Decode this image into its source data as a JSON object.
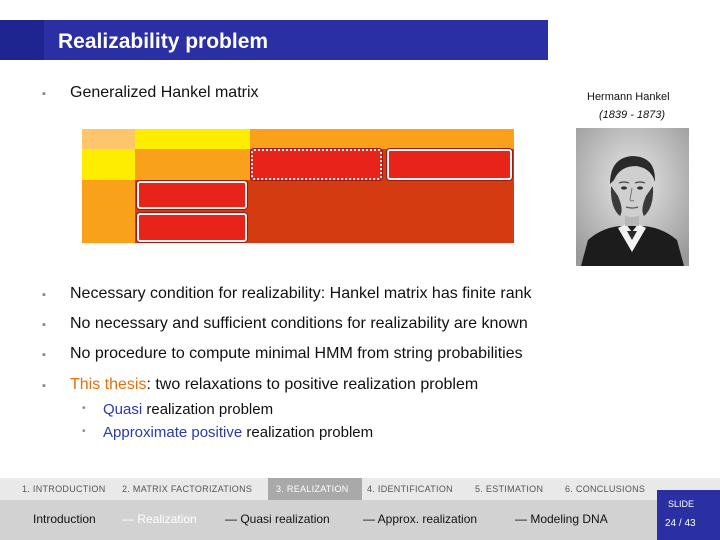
{
  "title": "Realizability problem",
  "bullets": {
    "b1": "Generalized Hankel matrix",
    "b2": "Necessary condition for realizability: Hankel matrix has finite rank",
    "b3": "No necessary and sufficient conditions for realizability are known",
    "b4": "No procedure to compute minimal HMM from string probabilities",
    "b5_highlight": "This thesis",
    "b5_rest": ": two relaxations to positive realization problem"
  },
  "sub_bullets": {
    "s1_highlight": "Quasi",
    "s1_rest": " realization problem",
    "s2_highlight": "Approximate positive",
    "s2_rest": " realization problem"
  },
  "portrait": {
    "name": "Hermann Hankel",
    "dates": "(1839 - 1873)"
  },
  "colors": {
    "title_bar": "#2a2fa3",
    "highlight_orange": "#e07010",
    "highlight_blue": "#2a3aa8",
    "matrix_light": "#fdb94e",
    "matrix_yellow": "#ffed00",
    "matrix_orange": "#f9a11b",
    "matrix_red": "#d43b10",
    "matrix_box": "#e8231a"
  },
  "nav": {
    "sections": [
      "1. INTRODUCTION",
      "2. MATRIX FACTORIZATIONS",
      "3. REALIZATION",
      "4. IDENTIFICATION",
      "5. ESTIMATION",
      "6. CONCLUSIONS"
    ],
    "active_section": "3. REALIZATION",
    "subsections": [
      "Introduction",
      "— Realization",
      "— Quasi realization",
      "— Approx. realization",
      "— Modeling DNA"
    ],
    "active_subsection": "— Realization",
    "slide_label": "SLIDE",
    "slide_number": "24 / 43"
  }
}
